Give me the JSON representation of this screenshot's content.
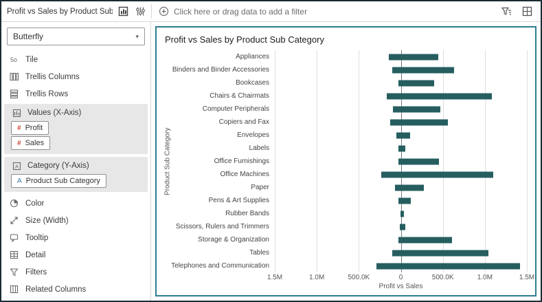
{
  "header": {
    "title": "Profit vs Sales by Product Sub...",
    "filter_prompt": "Click here or drag data to add a filter"
  },
  "icons": {
    "grammar_panel": "panel-with-chart",
    "settings_sliders": "vertical-sliders",
    "add_filter": "plus-circle",
    "filter_options": "funnel-with-lines",
    "canvas_grid": "grid-square",
    "tile": "5o",
    "chevron_down": "▾"
  },
  "sidebar": {
    "chart_type": "Butterfly",
    "slots_top": [
      "Tile",
      "Trellis Columns",
      "Trellis Rows"
    ],
    "values_section": {
      "label": "Values (X-Axis)",
      "chips": [
        {
          "prefix": "#",
          "label": "Profit"
        },
        {
          "prefix": "#",
          "label": "Sales"
        }
      ]
    },
    "category_section": {
      "label": "Category (Y-Axis)",
      "chips": [
        {
          "prefix": "A",
          "label": "Product Sub Category"
        }
      ]
    },
    "slots_bottom": [
      "Color",
      "Size (Width)",
      "Tooltip",
      "Detail",
      "Filters",
      "Related Columns"
    ]
  },
  "colors": {
    "selection_border": "#2e7d92",
    "bar": "#265e60",
    "measure_prefix": "#c74634",
    "attribute_prefix": "#3a7ca5"
  },
  "chart_data": {
    "type": "bar",
    "subtype": "butterfly",
    "title": "Profit vs Sales by Product Sub Category",
    "xlabel": "Profit vs Sales",
    "ylabel": "Product Sub Category",
    "bar_color": "#265e60",
    "grid": true,
    "xlim": [
      -1500000,
      1500000
    ],
    "x_ticks": [
      "1.5M",
      "1.0M",
      "500.0K",
      "0",
      "500.0K",
      "1.0M",
      "1.5M"
    ],
    "x_tick_values": [
      -1500000,
      -1000000,
      -500000,
      0,
      500000,
      1000000,
      1500000
    ],
    "categories": [
      "Appliances",
      "Binders and Binder Accessories",
      "Bookcases",
      "Chairs & Chairmats",
      "Computer Peripherals",
      "Copiers and Fax",
      "Envelopes",
      "Labels",
      "Office Furnishings",
      "Office Machines",
      "Paper",
      "Pens & Art Supplies",
      "Rubber Bands",
      "Scissors, Rulers and Trimmers",
      "Storage & Organization",
      "Tables",
      "Telephones and Communication"
    ],
    "series": [
      {
        "name": "Profit",
        "direction": "left",
        "values": [
          140000,
          100000,
          30000,
          170000,
          95000,
          130000,
          55000,
          25000,
          30000,
          235000,
          70000,
          25000,
          7000,
          10000,
          25000,
          100000,
          290000
        ]
      },
      {
        "name": "Sales",
        "direction": "right",
        "values": [
          445000,
          630000,
          400000,
          1080000,
          470000,
          560000,
          110000,
          55000,
          450000,
          1100000,
          270000,
          115000,
          40000,
          50000,
          610000,
          1040000,
          1420000
        ]
      }
    ]
  }
}
